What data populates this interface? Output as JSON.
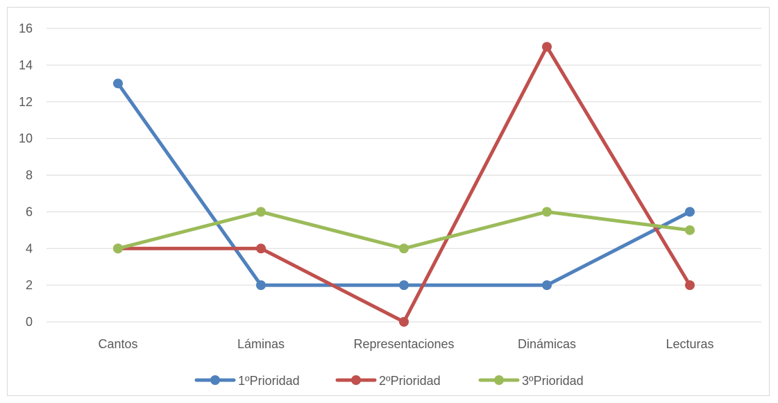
{
  "chart_data": {
    "type": "line",
    "title": "",
    "xlabel": "",
    "ylabel": "",
    "categories": [
      "Cantos",
      "Láminas",
      "Representaciones",
      "Dinámicas",
      "Lecturas"
    ],
    "ylim": [
      0,
      16
    ],
    "yticks": [
      "0",
      "2",
      "4",
      "6",
      "8",
      "10",
      "12",
      "14",
      "16"
    ],
    "grid": true,
    "legend_position": "bottom",
    "series": [
      {
        "name": "1ºPrioridad",
        "color": "#4f81bd",
        "values": [
          13,
          2,
          2,
          2,
          6
        ]
      },
      {
        "name": "2ºPrioridad",
        "color": "#c0504d",
        "values": [
          4,
          4,
          0,
          15,
          2
        ]
      },
      {
        "name": "3ºPrioridad",
        "color": "#9bbb59",
        "values": [
          4,
          6,
          4,
          6,
          5
        ]
      }
    ]
  }
}
